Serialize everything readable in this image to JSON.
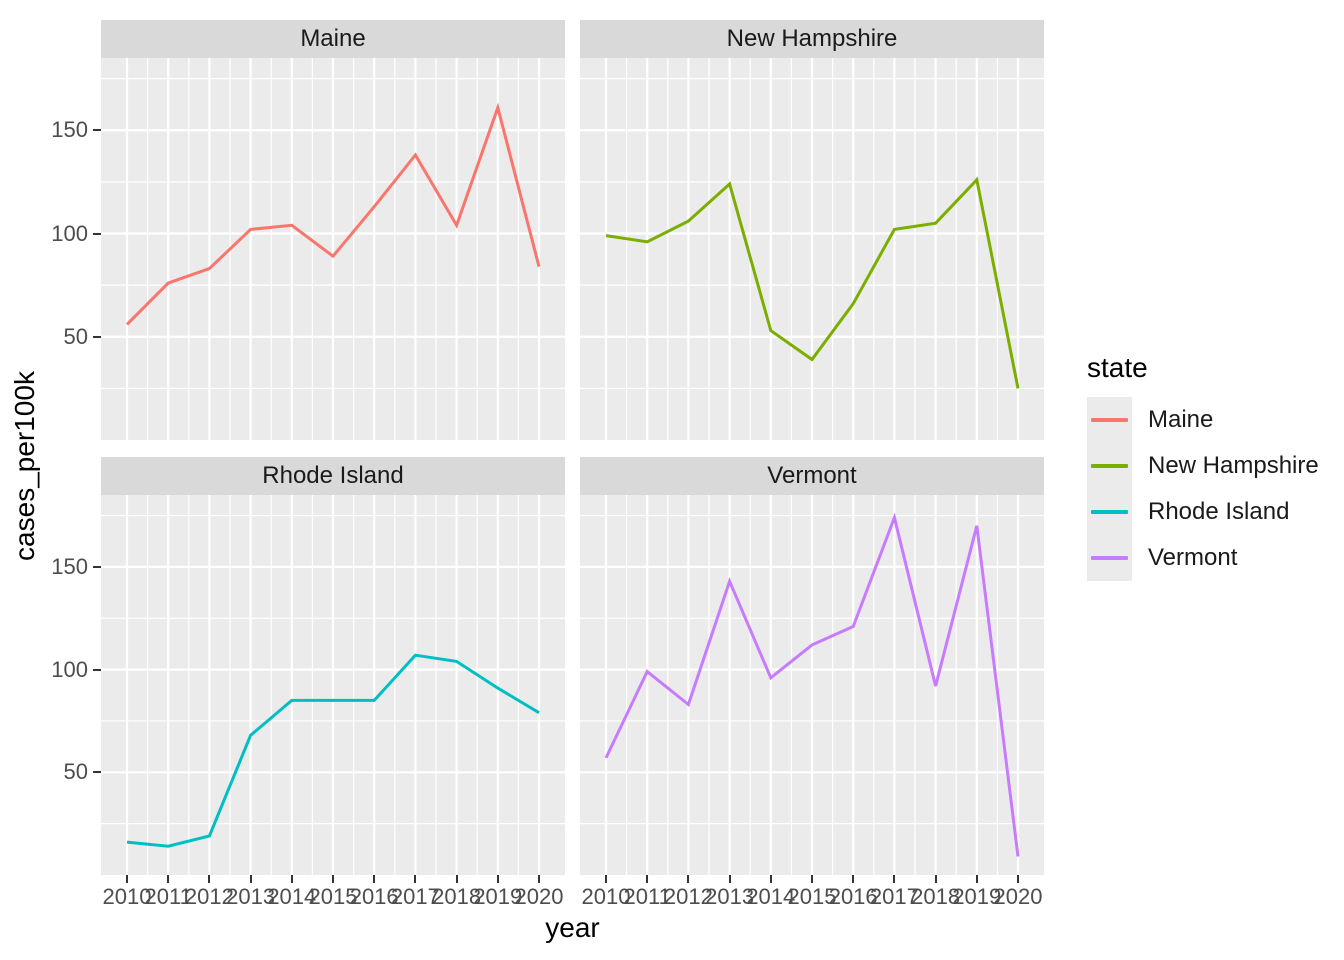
{
  "figure": {
    "xlabel": "year",
    "ylabel": "cases_per100k"
  },
  "chart_data": {
    "type": "line",
    "title": "",
    "xlabel": "year",
    "ylabel": "cases_per100k",
    "faceted_by": "state",
    "facets": [
      "Maine",
      "New Hampshire",
      "Rhode Island",
      "Vermont"
    ],
    "x": [
      2010,
      2011,
      2012,
      2013,
      2014,
      2015,
      2016,
      2017,
      2018,
      2019,
      2020
    ],
    "x_tick_labels": [
      "2010",
      "2011",
      "2012",
      "2013",
      "2014",
      "2015",
      "2016",
      "2017",
      "2018",
      "2019",
      "2020"
    ],
    "y_ticks": [
      50,
      100,
      150
    ],
    "y_minor_ticks": [
      25,
      75,
      125,
      175
    ],
    "ylim": [
      0,
      185
    ],
    "grid": "major+minor",
    "series": [
      {
        "name": "Maine",
        "color": "#F8766D",
        "values": [
          56,
          76,
          83,
          102,
          104,
          89,
          113,
          138,
          104,
          161,
          84
        ]
      },
      {
        "name": "New Hampshire",
        "color": "#7CAE00",
        "values": [
          99,
          96,
          106,
          124,
          53,
          39,
          66,
          102,
          105,
          126,
          25
        ]
      },
      {
        "name": "Rhode Island",
        "color": "#00BFC4",
        "values": [
          16,
          14,
          19,
          68,
          85,
          85,
          85,
          107,
          104,
          91,
          79
        ]
      },
      {
        "name": "Vermont",
        "color": "#C77CFF",
        "values": [
          57,
          99,
          83,
          143,
          96,
          112,
          121,
          174,
          92,
          170,
          9
        ]
      }
    ],
    "legend": {
      "title": "state",
      "position": "right",
      "entries": [
        "Maine",
        "New Hampshire",
        "Rhode Island",
        "Vermont"
      ]
    },
    "theme": {
      "panel_bg": "#EBEBEB",
      "strip_bg": "#D9D9D9",
      "grid_color": "#FFFFFF",
      "tick_color": "#333333",
      "tick_label_color": "#4D4D4D",
      "strip_text_color": "#1A1A1A",
      "axis_title_color": "#000000",
      "legend_key_bg": "#EBEBEB"
    }
  }
}
